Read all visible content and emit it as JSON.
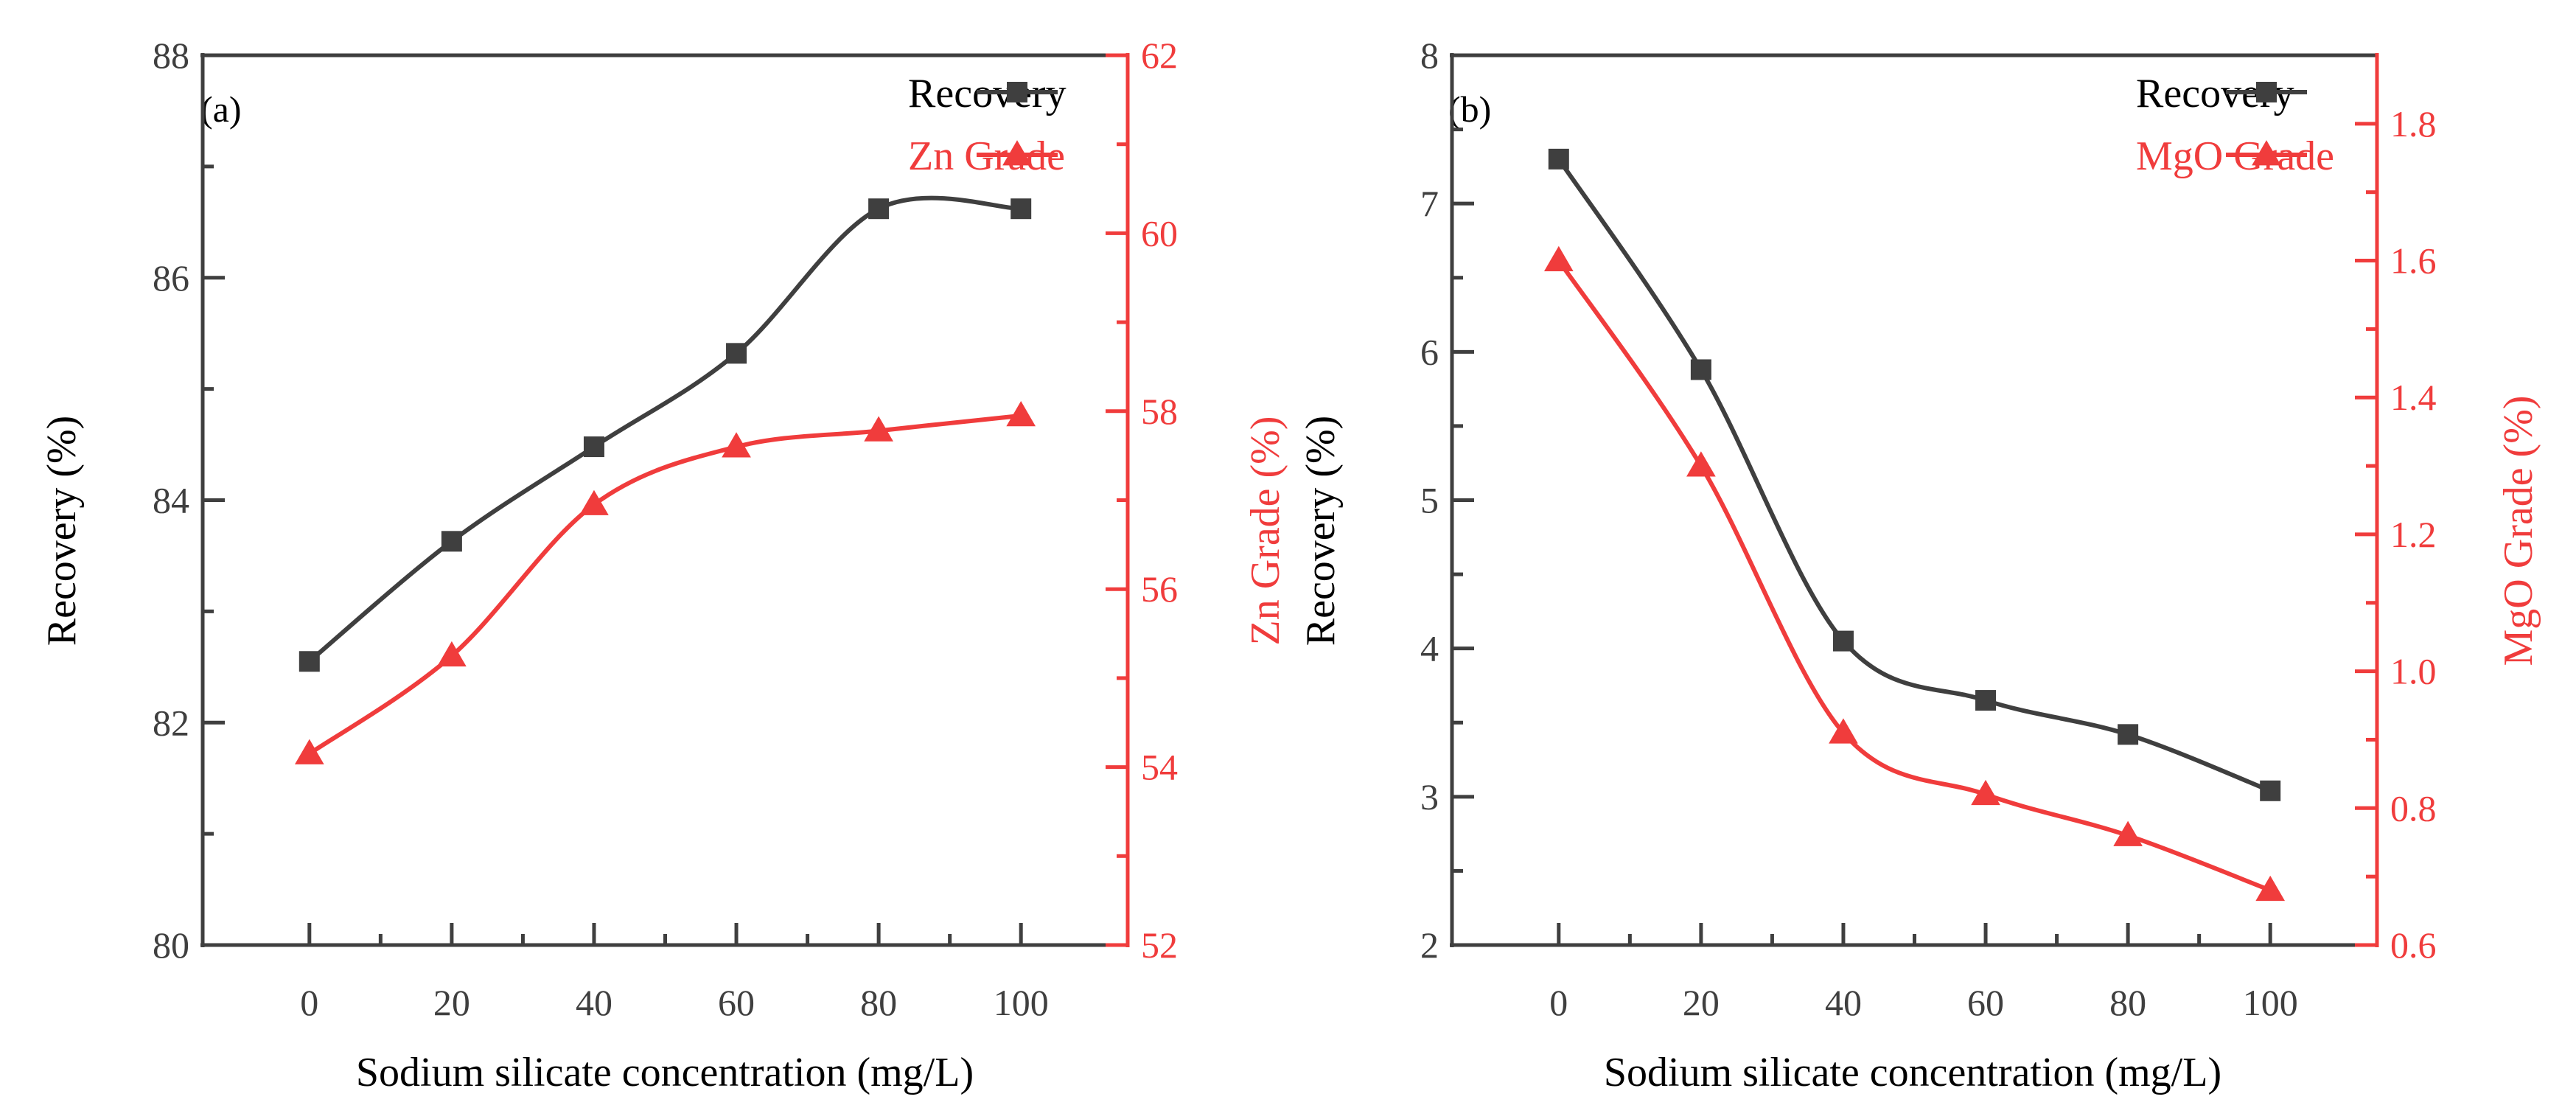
{
  "chart_data": [
    {
      "type": "line",
      "panel_label": "(a)",
      "xlabel": "Sodium silicate concentration (mg/L)",
      "x": [
        0,
        20,
        40,
        60,
        80,
        100
      ],
      "xlim": [
        -15,
        115
      ],
      "xticks": [
        0,
        20,
        40,
        60,
        80,
        100
      ],
      "left_axis": {
        "label": "Recovery (%)",
        "ylim": [
          80,
          88
        ],
        "ticks": [
          80,
          82,
          84,
          86,
          88
        ],
        "color": "#3f3f3f"
      },
      "right_axis": {
        "label": "Zn Grade (%)",
        "ylim": [
          52,
          62
        ],
        "ticks": [
          52,
          54,
          56,
          58,
          60,
          62
        ],
        "color": "#f03c3c"
      },
      "series": [
        {
          "name": "Recovery",
          "axis": "left",
          "marker": "square",
          "color": "#3f3f3f",
          "values": [
            82.55,
            83.63,
            84.48,
            85.32,
            86.62,
            86.62
          ]
        },
        {
          "name": "Zn Grade",
          "axis": "right",
          "marker": "triangle",
          "color": "#f03c3c",
          "values": [
            54.15,
            55.25,
            56.95,
            57.6,
            57.78,
            57.95
          ]
        }
      ],
      "legend_position": "top-right"
    },
    {
      "type": "line",
      "panel_label": "(b)",
      "xlabel": "Sodium silicate concentration (mg/L)",
      "x": [
        0,
        20,
        40,
        60,
        80,
        100
      ],
      "xlim": [
        -15,
        115
      ],
      "xticks": [
        0,
        20,
        40,
        60,
        80,
        100
      ],
      "left_axis": {
        "label": "Recovery (%)",
        "ylim": [
          2,
          8
        ],
        "ticks": [
          2,
          3,
          4,
          5,
          6,
          7,
          8
        ],
        "color": "#3f3f3f"
      },
      "right_axis": {
        "label": "MgO Grade (%)",
        "ylim": [
          0.6,
          1.9
        ],
        "ticks": [
          0.6,
          0.8,
          1.0,
          1.2,
          1.4,
          1.6,
          1.8
        ],
        "color": "#f03c3c"
      },
      "series": [
        {
          "name": "Recovery",
          "axis": "left",
          "marker": "square",
          "color": "#3f3f3f",
          "values": [
            7.3,
            5.88,
            4.05,
            3.65,
            3.42,
            3.04
          ]
        },
        {
          "name": "MgO Grade",
          "axis": "right",
          "marker": "triangle",
          "color": "#f03c3c",
          "values": [
            1.6,
            1.3,
            0.91,
            0.82,
            0.76,
            0.68
          ]
        }
      ],
      "legend_position": "top-right"
    }
  ]
}
